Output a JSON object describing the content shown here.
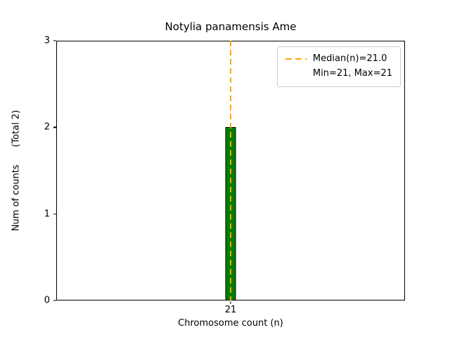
{
  "chart_data": {
    "type": "bar",
    "title": "Notylia panamensis Ame",
    "xlabel": "Chromosome count (n)",
    "ylabel": "Num of counts      (Total 2)",
    "categories": [
      "21"
    ],
    "values": [
      2
    ],
    "ylim": [
      0,
      3
    ],
    "yticks": [
      0,
      1,
      2,
      3
    ],
    "grid": "off",
    "bar_color": "#008000",
    "bar_edge_color": "#000000",
    "median_line": {
      "x_category": "21",
      "value": 21.0,
      "color": "#FFA500",
      "style": "dashed"
    },
    "legend": {
      "position": "upper right",
      "entries": [
        {
          "label": "Median(n)=21.0",
          "handle": "dashed-orange-line"
        },
        {
          "label": "Min=21, Max=21",
          "handle": "none"
        }
      ]
    }
  }
}
